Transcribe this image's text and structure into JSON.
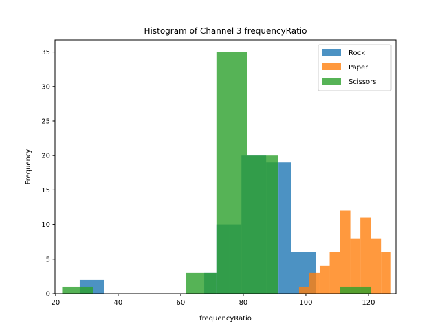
{
  "chart_data": {
    "type": "histogram",
    "title": "Histogram of Channel 3 frequencyRatio",
    "xlabel": "frequencyRatio",
    "ylabel": "Frequency",
    "xlim": [
      19.8,
      128.8
    ],
    "ylim": [
      0,
      36.75
    ],
    "xticks": [
      20,
      40,
      60,
      80,
      100,
      120
    ],
    "yticks": [
      0,
      5,
      10,
      15,
      20,
      25,
      30,
      35
    ],
    "legend_position": "top-right",
    "bar_opacity": 0.8,
    "series": [
      {
        "name": "Rock",
        "color": "#1f77b4",
        "bins": [
          {
            "x0": 27.7,
            "x1": 35.6,
            "count": 2
          },
          {
            "x0": 67.5,
            "x1": 71.4,
            "count": 3
          },
          {
            "x0": 71.4,
            "x1": 75.4,
            "count": 10
          },
          {
            "x0": 75.4,
            "x1": 79.4,
            "count": 10
          },
          {
            "x0": 79.4,
            "x1": 83.4,
            "count": 20
          },
          {
            "x0": 83.4,
            "x1": 87.3,
            "count": 20
          },
          {
            "x0": 87.3,
            "x1": 91.3,
            "count": 19
          },
          {
            "x0": 91.3,
            "x1": 95.2,
            "count": 19
          },
          {
            "x0": 95.2,
            "x1": 103.2,
            "count": 6
          }
        ]
      },
      {
        "name": "Paper",
        "color": "#ff7f0e",
        "bins": [
          {
            "x0": 97.8,
            "x1": 101.1,
            "count": 1
          },
          {
            "x0": 101.1,
            "x1": 104.4,
            "count": 3
          },
          {
            "x0": 104.4,
            "x1": 107.6,
            "count": 4
          },
          {
            "x0": 107.6,
            "x1": 110.9,
            "count": 6
          },
          {
            "x0": 110.9,
            "x1": 114.2,
            "count": 12
          },
          {
            "x0": 114.2,
            "x1": 117.4,
            "count": 8
          },
          {
            "x0": 117.4,
            "x1": 120.7,
            "count": 11
          },
          {
            "x0": 120.7,
            "x1": 124.0,
            "count": 8
          },
          {
            "x0": 124.0,
            "x1": 127.2,
            "count": 6
          }
        ]
      },
      {
        "name": "Scissors",
        "color": "#2ca02c",
        "bins": [
          {
            "x0": 22.1,
            "x1": 31.9,
            "count": 1
          },
          {
            "x0": 61.6,
            "x1": 71.4,
            "count": 3
          },
          {
            "x0": 71.4,
            "x1": 81.3,
            "count": 35
          },
          {
            "x0": 81.3,
            "x1": 91.2,
            "count": 20
          },
          {
            "x0": 111.0,
            "x1": 120.8,
            "count": 1
          }
        ]
      }
    ]
  }
}
